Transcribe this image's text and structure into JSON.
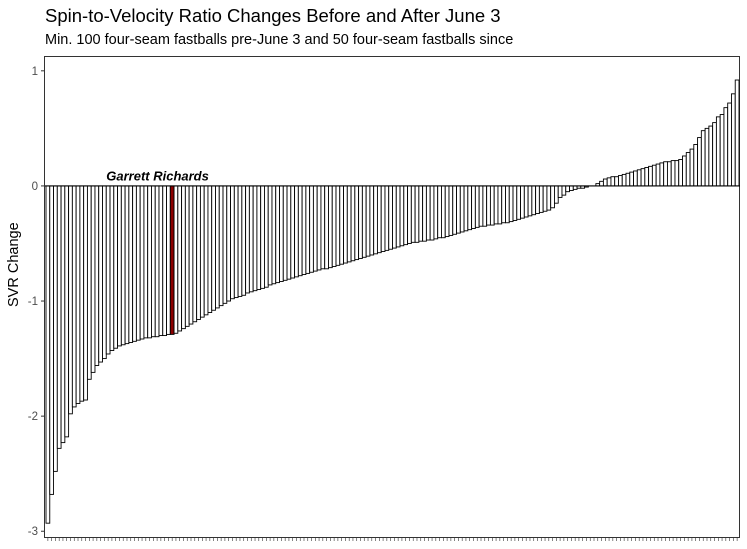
{
  "chart_data": {
    "type": "bar",
    "title": "Spin-to-Velocity Ratio Changes Before and After June 3",
    "subtitle": "Min. 100 four-seam fastballs pre-June 3 and 50 four-seam fastballs since",
    "xlabel": "",
    "ylabel": "SVR Change",
    "ylim": [
      -3.05,
      1.12
    ],
    "yticks": [
      1,
      0,
      -1,
      -2,
      -3
    ],
    "ytick_labels": [
      "1",
      "0",
      "-1",
      "-2",
      "-3"
    ],
    "grid": false,
    "bar_fill": "#ffffff",
    "bar_stroke": "#000000",
    "highlight_color": "#8b0000",
    "highlight_index": 33,
    "annotation": {
      "text": "Garrett Richards",
      "x_index": 16,
      "y": 0.03
    },
    "values": [
      -2.93,
      -2.68,
      -2.48,
      -2.28,
      -2.23,
      -2.18,
      -1.98,
      -1.92,
      -1.89,
      -1.87,
      -1.86,
      -1.68,
      -1.62,
      -1.56,
      -1.53,
      -1.5,
      -1.46,
      -1.43,
      -1.41,
      -1.39,
      -1.38,
      -1.37,
      -1.36,
      -1.35,
      -1.34,
      -1.33,
      -1.32,
      -1.32,
      -1.31,
      -1.31,
      -1.3,
      -1.3,
      -1.29,
      -1.29,
      -1.28,
      -1.26,
      -1.24,
      -1.22,
      -1.2,
      -1.18,
      -1.16,
      -1.14,
      -1.12,
      -1.1,
      -1.08,
      -1.06,
      -1.04,
      -1.02,
      -1.0,
      -0.98,
      -0.97,
      -0.96,
      -0.95,
      -0.93,
      -0.92,
      -0.91,
      -0.9,
      -0.89,
      -0.88,
      -0.86,
      -0.85,
      -0.84,
      -0.83,
      -0.82,
      -0.81,
      -0.8,
      -0.79,
      -0.78,
      -0.77,
      -0.76,
      -0.75,
      -0.74,
      -0.73,
      -0.72,
      -0.72,
      -0.71,
      -0.7,
      -0.69,
      -0.68,
      -0.67,
      -0.66,
      -0.65,
      -0.64,
      -0.63,
      -0.62,
      -0.61,
      -0.6,
      -0.59,
      -0.58,
      -0.57,
      -0.56,
      -0.55,
      -0.54,
      -0.53,
      -0.52,
      -0.51,
      -0.5,
      -0.49,
      -0.49,
      -0.48,
      -0.48,
      -0.47,
      -0.47,
      -0.46,
      -0.45,
      -0.45,
      -0.44,
      -0.43,
      -0.42,
      -0.41,
      -0.4,
      -0.39,
      -0.38,
      -0.37,
      -0.36,
      -0.35,
      -0.35,
      -0.34,
      -0.34,
      -0.33,
      -0.33,
      -0.32,
      -0.32,
      -0.31,
      -0.3,
      -0.29,
      -0.28,
      -0.27,
      -0.26,
      -0.25,
      -0.24,
      -0.23,
      -0.22,
      -0.21,
      -0.19,
      -0.15,
      -0.1,
      -0.08,
      -0.05,
      -0.04,
      -0.03,
      -0.02,
      -0.02,
      -0.01,
      0.0,
      0.0,
      0.02,
      0.04,
      0.06,
      0.07,
      0.08,
      0.08,
      0.09,
      0.1,
      0.11,
      0.12,
      0.13,
      0.14,
      0.15,
      0.16,
      0.17,
      0.18,
      0.19,
      0.2,
      0.21,
      0.21,
      0.22,
      0.22,
      0.23,
      0.26,
      0.29,
      0.32,
      0.36,
      0.42,
      0.48,
      0.5,
      0.52,
      0.55,
      0.6,
      0.62,
      0.68,
      0.72,
      0.8,
      0.92
    ]
  }
}
